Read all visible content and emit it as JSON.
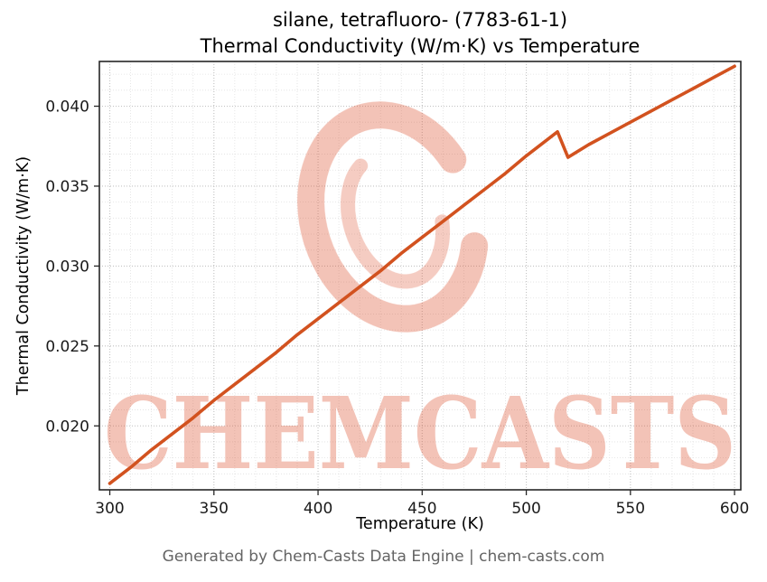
{
  "title": {
    "line1": "silane, tetrafluoro- (7783-61-1)",
    "line2": "Thermal Conductivity (W/m·K) vs Temperature"
  },
  "footer": "Generated by Chem-Casts Data Engine | chem-casts.com",
  "watermark": {
    "text": "CHEMCASTS",
    "color": "#dd5533",
    "opacity": 0.35
  },
  "colors": {
    "line": "#d2521f",
    "grid_major": "#c4c4c4",
    "grid_minor": "#e0e0e0",
    "spine": "#262626",
    "tick_label": "#1a1a1a",
    "footer_text": "#646464"
  },
  "chart_data": {
    "type": "line",
    "title": "silane, tetrafluoro- (7783-61-1) — Thermal Conductivity (W/m·K) vs Temperature",
    "xlabel": "Temperature (K)",
    "ylabel": "Thermal Conductivity (W/m·K)",
    "xlim": [
      295,
      603
    ],
    "ylim": [
      0.016,
      0.0428
    ],
    "xticks": [
      300,
      350,
      400,
      450,
      500,
      550,
      600
    ],
    "yticks": [
      0.02,
      0.025,
      0.03,
      0.035,
      0.04
    ],
    "grid": "major-and-minor-dotted",
    "legend": "none",
    "x": [
      300,
      310,
      320,
      330,
      340,
      350,
      360,
      370,
      380,
      390,
      400,
      410,
      420,
      430,
      440,
      450,
      460,
      470,
      480,
      490,
      500,
      510,
      515,
      520,
      530,
      540,
      550,
      560,
      570,
      580,
      590,
      600
    ],
    "y": [
      0.0164,
      0.0174,
      0.0185,
      0.0195,
      0.0205,
      0.0216,
      0.0226,
      0.0236,
      0.0246,
      0.0257,
      0.0267,
      0.0277,
      0.0287,
      0.0297,
      0.0308,
      0.0318,
      0.0328,
      0.0338,
      0.0348,
      0.0358,
      0.0369,
      0.0379,
      0.0384,
      0.0368,
      0.0376,
      0.0383,
      0.039,
      0.0397,
      0.0404,
      0.0411,
      0.0418,
      0.0425
    ]
  }
}
